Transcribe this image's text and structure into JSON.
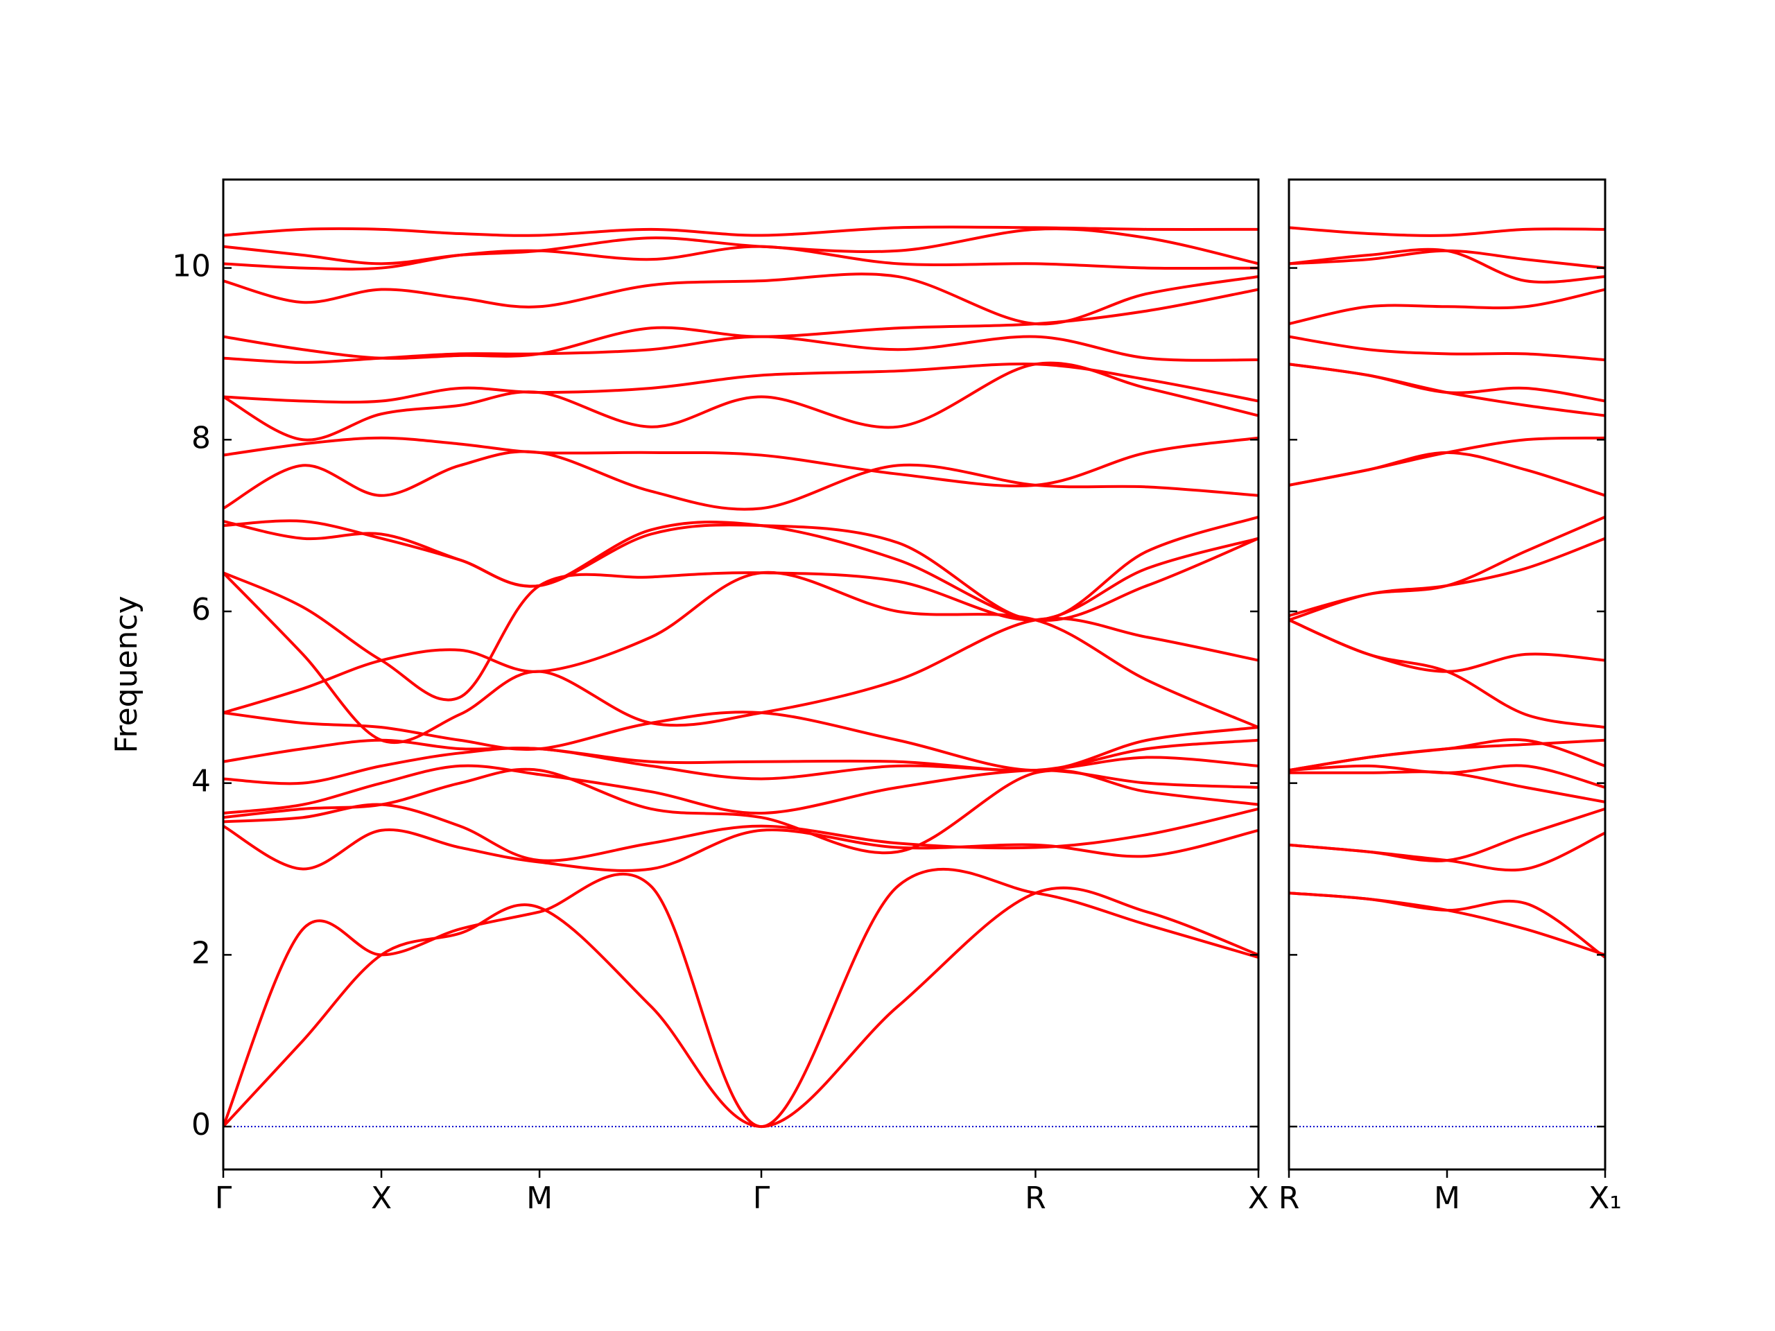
{
  "chart_data": [
    {
      "type": "line",
      "y_label": "Frequency",
      "color": "#ff0000",
      "zero_line": true,
      "zero_line_color": "#0000cc",
      "ylim": [
        -0.5,
        11.03
      ],
      "yticks": [
        0,
        2,
        4,
        6,
        8,
        10
      ],
      "xlim": [
        0,
        910
      ],
      "xticks": [
        {
          "value": 0,
          "label": "Γ"
        },
        {
          "value": 139,
          "label": "X"
        },
        {
          "value": 278,
          "label": "M"
        },
        {
          "value": 473,
          "label": "Γ"
        },
        {
          "value": 714,
          "label": "R"
        },
        {
          "value": 910,
          "label": "X"
        }
      ],
      "x": [
        0,
        70,
        139,
        208,
        278,
        376,
        473,
        593,
        714,
        812,
        910
      ],
      "series": [
        {
          "values": [
            0,
            1.0,
            2.0,
            2.25,
            2.55,
            1.4,
            0,
            1.4,
            2.72,
            2.5,
            2.0
          ]
        },
        {
          "values": [
            0,
            2.3,
            2.0,
            2.3,
            2.5,
            2.8,
            0,
            2.8,
            2.72,
            2.35,
            1.97
          ]
        },
        {
          "values": [
            3.5,
            3.0,
            3.45,
            3.25,
            3.08,
            3.0,
            3.45,
            3.25,
            3.28,
            3.15,
            3.45
          ]
        },
        {
          "values": [
            3.55,
            3.6,
            3.75,
            3.5,
            3.1,
            3.3,
            3.5,
            3.3,
            3.25,
            3.4,
            3.7
          ]
        },
        {
          "values": [
            3.6,
            3.7,
            3.75,
            4.0,
            4.15,
            3.7,
            3.6,
            3.2,
            4.12,
            3.9,
            3.75
          ]
        },
        {
          "values": [
            3.65,
            3.75,
            4.0,
            4.2,
            4.1,
            3.9,
            3.65,
            3.95,
            4.15,
            4.0,
            3.95
          ]
        },
        {
          "values": [
            4.05,
            4.0,
            4.2,
            4.35,
            4.4,
            4.2,
            4.05,
            4.2,
            4.15,
            4.3,
            4.2
          ]
        },
        {
          "values": [
            4.25,
            4.4,
            4.5,
            4.4,
            4.4,
            4.25,
            4.25,
            4.25,
            4.15,
            4.4,
            4.5
          ]
        },
        {
          "values": [
            4.82,
            4.7,
            4.65,
            4.5,
            4.4,
            4.7,
            4.82,
            4.5,
            4.15,
            4.5,
            4.65
          ]
        },
        {
          "values": [
            6.45,
            5.5,
            4.5,
            4.8,
            5.3,
            4.7,
            4.82,
            5.2,
            5.9,
            5.7,
            5.43
          ]
        },
        {
          "values": [
            4.82,
            5.1,
            5.43,
            5.55,
            5.3,
            5.7,
            6.45,
            6.0,
            5.9,
            5.2,
            4.65
          ]
        },
        {
          "values": [
            6.45,
            6.05,
            5.43,
            5.0,
            6.3,
            6.4,
            6.45,
            6.35,
            5.9,
            6.5,
            6.85
          ]
        },
        {
          "values": [
            7.05,
            6.85,
            6.9,
            6.6,
            6.3,
            6.9,
            7.0,
            6.8,
            5.9,
            6.7,
            7.1
          ]
        },
        {
          "values": [
            7.0,
            7.05,
            6.85,
            6.6,
            6.3,
            6.95,
            7.0,
            6.6,
            5.9,
            6.3,
            6.85
          ]
        },
        {
          "values": [
            7.2,
            7.7,
            7.35,
            7.7,
            7.85,
            7.4,
            7.2,
            7.7,
            7.47,
            7.45,
            7.35
          ]
        },
        {
          "values": [
            7.82,
            7.95,
            8.02,
            7.95,
            7.85,
            7.85,
            7.82,
            7.6,
            7.47,
            7.85,
            8.02
          ]
        },
        {
          "values": [
            8.5,
            8.0,
            8.3,
            8.4,
            8.55,
            8.15,
            8.5,
            8.15,
            8.88,
            8.6,
            8.28
          ]
        },
        {
          "values": [
            8.5,
            8.45,
            8.45,
            8.6,
            8.55,
            8.6,
            8.75,
            8.8,
            8.88,
            8.7,
            8.45
          ]
        },
        {
          "values": [
            8.95,
            8.9,
            8.95,
            9.0,
            9.0,
            9.05,
            9.2,
            9.05,
            9.2,
            8.95,
            8.93
          ]
        },
        {
          "values": [
            9.2,
            9.05,
            8.95,
            8.98,
            9.0,
            9.3,
            9.2,
            9.3,
            9.35,
            9.5,
            9.75
          ]
        },
        {
          "values": [
            9.85,
            9.6,
            9.75,
            9.65,
            9.55,
            9.8,
            9.85,
            9.9,
            9.35,
            9.7,
            9.9
          ]
        },
        {
          "values": [
            10.05,
            10.0,
            10.0,
            10.15,
            10.2,
            10.1,
            10.25,
            10.05,
            10.05,
            10.0,
            10.0
          ]
        },
        {
          "values": [
            10.25,
            10.15,
            10.05,
            10.15,
            10.2,
            10.35,
            10.25,
            10.2,
            10.45,
            10.35,
            10.05
          ]
        },
        {
          "values": [
            10.38,
            10.45,
            10.45,
            10.4,
            10.38,
            10.45,
            10.38,
            10.47,
            10.47,
            10.45,
            10.45
          ]
        }
      ]
    },
    {
      "type": "line",
      "color": "#ff0000",
      "zero_line": true,
      "zero_line_color": "#0000cc",
      "ylim": [
        -0.5,
        11.03
      ],
      "yticks": [
        0,
        2,
        4,
        6,
        8,
        10
      ],
      "xlim": [
        0,
        278
      ],
      "xticks": [
        {
          "value": 0,
          "label": "R"
        },
        {
          "value": 139,
          "label": "M"
        },
        {
          "value": 278,
          "label": "X₁"
        }
      ],
      "x": [
        0,
        70,
        139,
        208,
        278
      ],
      "series": [
        {
          "values": [
            2.72,
            2.65,
            2.52,
            2.3,
            2.0
          ]
        },
        {
          "values": [
            2.72,
            2.65,
            2.52,
            2.6,
            1.97
          ]
        },
        {
          "values": [
            3.28,
            3.2,
            3.1,
            3.0,
            3.42
          ]
        },
        {
          "values": [
            3.28,
            3.2,
            3.1,
            3.4,
            3.7
          ]
        },
        {
          "values": [
            4.12,
            4.12,
            4.12,
            3.95,
            3.78
          ]
        },
        {
          "values": [
            4.15,
            4.2,
            4.12,
            4.2,
            3.95
          ]
        },
        {
          "values": [
            4.15,
            4.3,
            4.4,
            4.5,
            4.2
          ]
        },
        {
          "values": [
            4.15,
            4.3,
            4.4,
            4.45,
            4.5
          ]
        },
        {
          "values": [
            5.9,
            5.5,
            5.3,
            4.8,
            4.65
          ]
        },
        {
          "values": [
            5.9,
            5.5,
            5.3,
            5.5,
            5.43
          ]
        },
        {
          "values": [
            5.9,
            6.2,
            6.3,
            6.5,
            6.85
          ]
        },
        {
          "values": [
            5.95,
            6.2,
            6.3,
            6.7,
            7.1
          ]
        },
        {
          "values": [
            7.47,
            7.65,
            7.85,
            8.0,
            8.02
          ]
        },
        {
          "values": [
            7.47,
            7.65,
            7.85,
            7.65,
            7.35
          ]
        },
        {
          "values": [
            8.88,
            8.75,
            8.55,
            8.4,
            8.28
          ]
        },
        {
          "values": [
            8.88,
            8.75,
            8.55,
            8.6,
            8.45
          ]
        },
        {
          "values": [
            9.2,
            9.05,
            9.0,
            9.0,
            8.93
          ]
        },
        {
          "values": [
            9.35,
            9.55,
            9.55,
            9.55,
            9.75
          ]
        },
        {
          "values": [
            10.05,
            10.1,
            10.2,
            10.1,
            10.0
          ]
        },
        {
          "values": [
            10.47,
            10.4,
            10.38,
            10.45,
            10.45
          ]
        },
        {
          "values": [
            10.05,
            10.15,
            10.2,
            9.85,
            9.9
          ]
        }
      ]
    }
  ]
}
